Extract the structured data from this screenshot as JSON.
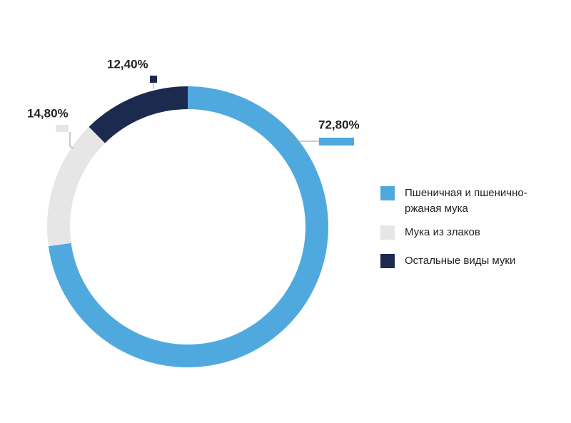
{
  "chart_data": {
    "type": "donut",
    "categories": [
      "Пшеничная и пшенично-ржаная мука",
      "Мука из злаков",
      "Остальные виды муки"
    ],
    "values": [
      72.8,
      14.8,
      12.4
    ],
    "value_labels": [
      "72,80%",
      "14,80%",
      "12,40%"
    ],
    "colors": [
      "#4fa9df",
      "#e6e6e6",
      "#1c2a4f"
    ],
    "legend": "right"
  }
}
